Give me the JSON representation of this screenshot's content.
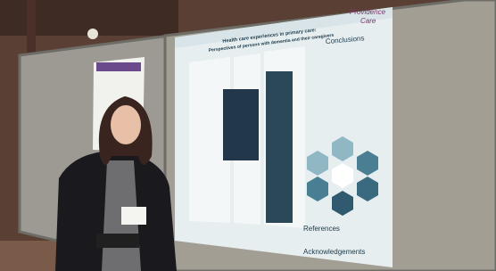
{
  "poster": {
    "logo": [
      "Providence",
      "Care"
    ],
    "title": "Health care experiences in primary care:",
    "subtitle": "Perspectives of persons with dementia and their caregivers",
    "sections": [
      "Conclusions",
      "References",
      "Acknowledgements"
    ]
  }
}
